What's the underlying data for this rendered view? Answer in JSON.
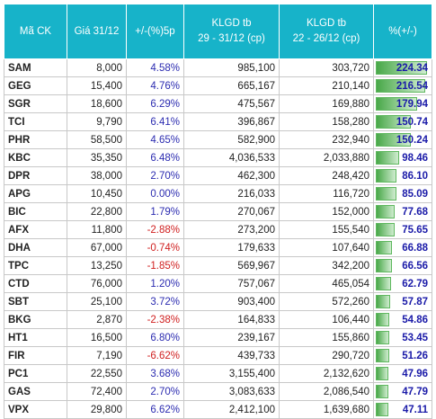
{
  "table": {
    "header": [
      [
        "Mã CK"
      ],
      [
        "Giá 31/12"
      ],
      [
        "+/-(%)5p"
      ],
      [
        "KLGD tb",
        "29 - 31/12 (cp)"
      ],
      [
        "KLGD tb",
        "22 - 26/12 (cp)"
      ],
      [
        "%(+/-)"
      ]
    ],
    "rows": [
      [
        "SAM",
        "8,000",
        "4.58%",
        "985,100",
        "303,720",
        "224.34"
      ],
      [
        "GEG",
        "15,400",
        "4.76%",
        "665,167",
        "210,140",
        "216.54"
      ],
      [
        "SGR",
        "18,600",
        "6.29%",
        "475,567",
        "169,880",
        "179.94"
      ],
      [
        "TCI",
        "9,790",
        "6.41%",
        "396,867",
        "158,280",
        "150.74"
      ],
      [
        "PHR",
        "58,500",
        "4.65%",
        "582,900",
        "232,940",
        "150.24"
      ],
      [
        "KBC",
        "35,350",
        "6.48%",
        "4,036,533",
        "2,033,880",
        "98.46"
      ],
      [
        "DPR",
        "38,000",
        "2.70%",
        "462,300",
        "248,420",
        "86.10"
      ],
      [
        "APG",
        "10,450",
        "0.00%",
        "216,033",
        "116,720",
        "85.09"
      ],
      [
        "BIC",
        "22,800",
        "1.79%",
        "270,067",
        "152,000",
        "77.68"
      ],
      [
        "AFX",
        "11,800",
        "-2.88%",
        "273,200",
        "155,540",
        "75.65"
      ],
      [
        "DHA",
        "67,000",
        "-0.74%",
        "179,633",
        "107,640",
        "66.88"
      ],
      [
        "TPC",
        "13,250",
        "-1.85%",
        "569,967",
        "342,200",
        "66.56"
      ],
      [
        "CTD",
        "76,000",
        "1.20%",
        "757,067",
        "465,054",
        "62.79"
      ],
      [
        "SBT",
        "25,100",
        "3.72%",
        "903,400",
        "572,260",
        "57.87"
      ],
      [
        "BKG",
        "2,870",
        "-2.38%",
        "164,833",
        "106,440",
        "54.86"
      ],
      [
        "HT1",
        "16,500",
        "6.80%",
        "239,167",
        "155,860",
        "53.45"
      ],
      [
        "FIR",
        "7,190",
        "-6.62%",
        "439,733",
        "290,720",
        "51.26"
      ],
      [
        "PC1",
        "22,550",
        "3.68%",
        "3,155,400",
        "2,132,620",
        "47.96"
      ],
      [
        "GAS",
        "72,400",
        "2.70%",
        "3,083,633",
        "2,086,540",
        "47.79"
      ],
      [
        "VPX",
        "29,800",
        "6.62%",
        "2,412,100",
        "1,639,680",
        "47.11"
      ]
    ]
  }
}
